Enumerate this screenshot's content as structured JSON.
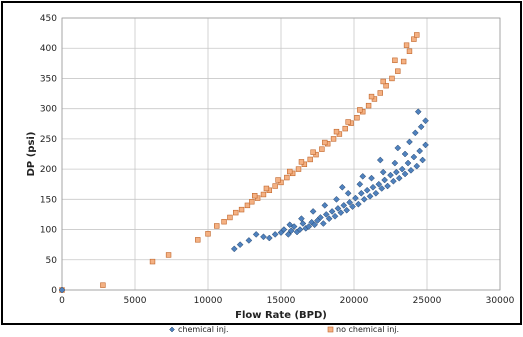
{
  "chart_data": {
    "type": "scatter",
    "title": "",
    "xlabel": "Flow Rate (BPD)",
    "ylabel": "DP (psi)",
    "xlim": [
      0,
      30000
    ],
    "ylim": [
      0,
      450
    ],
    "x_ticks": [
      "0",
      "5000",
      "10000",
      "15000",
      "20000",
      "25000",
      "30000"
    ],
    "y_ticks": [
      "0",
      "50",
      "100",
      "150",
      "200",
      "250",
      "300",
      "350",
      "400",
      "450"
    ],
    "grid": true,
    "legend_position": "bottom",
    "series": [
      {
        "name": "chemical inj.",
        "marker": "diamond",
        "color": "#4f81bd",
        "points": [
          [
            0,
            0
          ],
          [
            11800,
            68
          ],
          [
            12200,
            75
          ],
          [
            12800,
            82
          ],
          [
            13300,
            92
          ],
          [
            13800,
            88
          ],
          [
            14200,
            86
          ],
          [
            14600,
            92
          ],
          [
            15000,
            95
          ],
          [
            15200,
            100
          ],
          [
            15500,
            92
          ],
          [
            15700,
            98
          ],
          [
            15900,
            105
          ],
          [
            16100,
            96
          ],
          [
            16300,
            100
          ],
          [
            16500,
            110
          ],
          [
            16700,
            102
          ],
          [
            16900,
            105
          ],
          [
            17100,
            112
          ],
          [
            17300,
            108
          ],
          [
            17500,
            115
          ],
          [
            17700,
            120
          ],
          [
            17900,
            110
          ],
          [
            18100,
            125
          ],
          [
            18300,
            118
          ],
          [
            18500,
            130
          ],
          [
            18700,
            122
          ],
          [
            18900,
            135
          ],
          [
            19100,
            128
          ],
          [
            19300,
            140
          ],
          [
            19500,
            132
          ],
          [
            19700,
            145
          ],
          [
            19900,
            138
          ],
          [
            20100,
            152
          ],
          [
            20300,
            142
          ],
          [
            20500,
            160
          ],
          [
            20700,
            150
          ],
          [
            20900,
            165
          ],
          [
            21100,
            155
          ],
          [
            21300,
            170
          ],
          [
            21500,
            160
          ],
          [
            21700,
            175
          ],
          [
            21900,
            168
          ],
          [
            22100,
            182
          ],
          [
            22300,
            172
          ],
          [
            22500,
            190
          ],
          [
            22700,
            180
          ],
          [
            22900,
            195
          ],
          [
            23100,
            185
          ],
          [
            23300,
            200
          ],
          [
            23500,
            192
          ],
          [
            23700,
            210
          ],
          [
            23900,
            198
          ],
          [
            24100,
            220
          ],
          [
            24300,
            205
          ],
          [
            24500,
            230
          ],
          [
            24700,
            215
          ],
          [
            24900,
            240
          ],
          [
            23800,
            245
          ],
          [
            24200,
            260
          ],
          [
            24600,
            270
          ],
          [
            23500,
            225
          ],
          [
            22800,
            210
          ],
          [
            22000,
            195
          ],
          [
            21200,
            185
          ],
          [
            20400,
            175
          ],
          [
            19600,
            160
          ],
          [
            18800,
            150
          ],
          [
            18000,
            140
          ],
          [
            17200,
            130
          ],
          [
            16400,
            118
          ],
          [
            15600,
            108
          ],
          [
            24900,
            280
          ],
          [
            24400,
            295
          ],
          [
            23000,
            235
          ],
          [
            21800,
            215
          ],
          [
            20600,
            188
          ],
          [
            19200,
            170
          ]
        ]
      },
      {
        "name": "no chemical inj.",
        "marker": "square",
        "color": "#f4b183",
        "points": [
          [
            0,
            0
          ],
          [
            2800,
            8
          ],
          [
            6200,
            47
          ],
          [
            7300,
            58
          ],
          [
            9300,
            83
          ],
          [
            10000,
            93
          ],
          [
            10600,
            106
          ],
          [
            11100,
            113
          ],
          [
            11500,
            120
          ],
          [
            11900,
            128
          ],
          [
            12300,
            133
          ],
          [
            12700,
            140
          ],
          [
            13000,
            146
          ],
          [
            13400,
            152
          ],
          [
            13800,
            158
          ],
          [
            14200,
            165
          ],
          [
            14600,
            172
          ],
          [
            15000,
            178
          ],
          [
            15400,
            186
          ],
          [
            15800,
            193
          ],
          [
            16200,
            200
          ],
          [
            16600,
            208
          ],
          [
            17000,
            216
          ],
          [
            17400,
            224
          ],
          [
            17800,
            233
          ],
          [
            18200,
            242
          ],
          [
            18600,
            250
          ],
          [
            19000,
            258
          ],
          [
            19400,
            267
          ],
          [
            19800,
            276
          ],
          [
            20200,
            285
          ],
          [
            20600,
            295
          ],
          [
            21000,
            305
          ],
          [
            21400,
            316
          ],
          [
            21800,
            326
          ],
          [
            22200,
            338
          ],
          [
            22600,
            350
          ],
          [
            23000,
            362
          ],
          [
            23400,
            378
          ],
          [
            23800,
            395
          ],
          [
            24100,
            415
          ],
          [
            24300,
            422
          ],
          [
            23600,
            405
          ],
          [
            22800,
            380
          ],
          [
            22000,
            345
          ],
          [
            21200,
            320
          ],
          [
            20400,
            298
          ],
          [
            19600,
            278
          ],
          [
            18800,
            262
          ],
          [
            18000,
            244
          ],
          [
            17200,
            228
          ],
          [
            16400,
            212
          ],
          [
            15600,
            196
          ],
          [
            14800,
            182
          ],
          [
            14000,
            168
          ],
          [
            13200,
            156
          ]
        ]
      }
    ]
  }
}
